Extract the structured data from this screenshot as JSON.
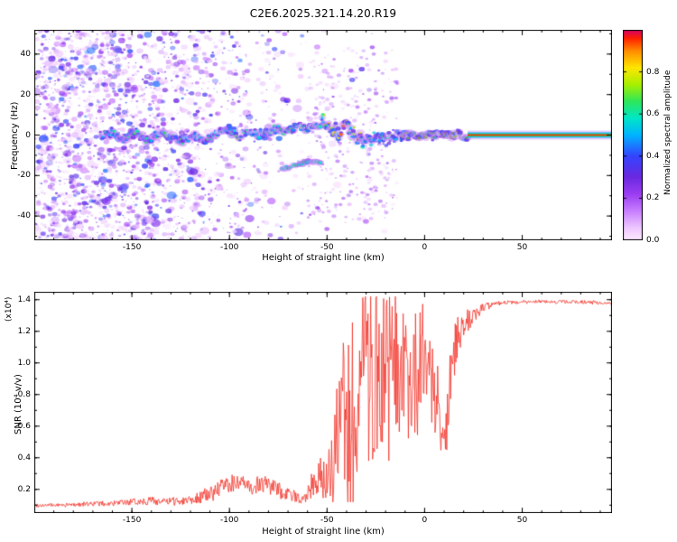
{
  "chart_data": [
    {
      "type": "heatmap",
      "title": "C2E6.2025.321.14.20.R19",
      "xlabel": "Height of straight line (km)",
      "ylabel": "Frequency (Hz)",
      "xlim": [
        -200,
        96
      ],
      "ylim": [
        -52,
        52
      ],
      "xticks": [
        -150,
        -100,
        -50,
        0,
        50
      ],
      "yticks": [
        -40,
        -20,
        0,
        20,
        40
      ],
      "grid": false,
      "colorbar": {
        "label": "Normalized spectral amplitude",
        "ticks": [
          0.0,
          0.2,
          0.4,
          0.6,
          0.8
        ],
        "range": [
          0,
          1
        ]
      },
      "colormap_stops": [
        [
          0.0,
          "#fdeaff"
        ],
        [
          0.06,
          "#eec6ff"
        ],
        [
          0.14,
          "#c77dff"
        ],
        [
          0.22,
          "#9b3df2"
        ],
        [
          0.3,
          "#6a29e0"
        ],
        [
          0.4,
          "#3444ff"
        ],
        [
          0.5,
          "#00b4ff"
        ],
        [
          0.58,
          "#00e6c8"
        ],
        [
          0.66,
          "#2ee65a"
        ],
        [
          0.74,
          "#a8f000"
        ],
        [
          0.82,
          "#ffe600"
        ],
        [
          0.9,
          "#ff8c00"
        ],
        [
          0.96,
          "#ff1e00"
        ],
        [
          1.0,
          "#d4006e"
        ]
      ],
      "noise": {
        "full_until_km": -150,
        "fade_until_km": -58,
        "sparse_until_km": -15,
        "freq_span": [
          -52,
          52
        ]
      },
      "main_track": [
        [
          -166,
          -1
        ],
        [
          -160,
          1
        ],
        [
          -154,
          -2
        ],
        [
          -148,
          2
        ],
        [
          -142,
          -3
        ],
        [
          -136,
          1
        ],
        [
          -130,
          -1
        ],
        [
          -124,
          -3
        ],
        [
          -118,
          0
        ],
        [
          -112,
          -2
        ],
        [
          -106,
          1
        ],
        [
          -100,
          3
        ],
        [
          -95,
          -1
        ],
        [
          -90,
          2
        ],
        [
          -85,
          0
        ],
        [
          -80,
          2
        ],
        [
          -76,
          4
        ],
        [
          -72,
          2
        ],
        [
          -68,
          3
        ],
        [
          -64,
          5
        ],
        [
          -60,
          3
        ],
        [
          -56,
          4
        ],
        [
          -52,
          6
        ],
        [
          -48,
          3
        ],
        [
          -44,
          1
        ],
        [
          -40,
          4
        ],
        [
          -36,
          0
        ],
        [
          -32,
          -2
        ],
        [
          -28,
          -2
        ],
        [
          -24,
          -1
        ],
        [
          -20,
          -2
        ],
        [
          -16,
          -1
        ],
        [
          -12,
          0
        ],
        [
          -8,
          0
        ],
        [
          -4,
          0
        ],
        [
          0,
          0
        ],
        [
          6,
          0
        ],
        [
          12,
          0
        ],
        [
          18,
          0
        ],
        [
          22,
          0
        ]
      ],
      "secondary_track": [
        [
          -73,
          -17
        ],
        [
          -68,
          -15
        ],
        [
          -63,
          -14
        ],
        [
          -58,
          -13
        ],
        [
          -53,
          -13
        ]
      ],
      "locked_line": {
        "start_km": 22,
        "freq": 0
      }
    },
    {
      "type": "line",
      "xlabel": "Height of straight line (km)",
      "ylabel": "SNR (10⁴ v/v)",
      "scale_note": "(x10⁴)",
      "xlim": [
        -200,
        96
      ],
      "ylim": [
        0.05,
        1.45
      ],
      "xticks": [
        -150,
        -100,
        -50,
        0,
        50
      ],
      "yticks": [
        0.2,
        0.4,
        0.6,
        0.8,
        1.0,
        1.2,
        1.4
      ],
      "line_color": "#f2342a",
      "anchors": [
        [
          -200,
          0.1,
          0.012
        ],
        [
          -185,
          0.1,
          0.012
        ],
        [
          -170,
          0.11,
          0.015
        ],
        [
          -160,
          0.11,
          0.018
        ],
        [
          -150,
          0.12,
          0.02
        ],
        [
          -140,
          0.13,
          0.03
        ],
        [
          -132,
          0.12,
          0.025
        ],
        [
          -124,
          0.13,
          0.03
        ],
        [
          -116,
          0.15,
          0.04
        ],
        [
          -110,
          0.17,
          0.05
        ],
        [
          -104,
          0.21,
          0.06
        ],
        [
          -99,
          0.24,
          0.06
        ],
        [
          -94,
          0.23,
          0.06
        ],
        [
          -89,
          0.21,
          0.05
        ],
        [
          -84,
          0.24,
          0.06
        ],
        [
          -79,
          0.22,
          0.06
        ],
        [
          -74,
          0.19,
          0.05
        ],
        [
          -69,
          0.16,
          0.04
        ],
        [
          -64,
          0.15,
          0.04
        ],
        [
          -60,
          0.18,
          0.06
        ],
        [
          -57,
          0.24,
          0.1
        ],
        [
          -54,
          0.28,
          0.14
        ],
        [
          -51,
          0.26,
          0.12
        ],
        [
          -49,
          0.35,
          0.22
        ],
        [
          -46,
          0.5,
          0.32
        ],
        [
          -43,
          0.55,
          0.38
        ],
        [
          -40,
          0.65,
          0.45
        ],
        [
          -37,
          0.72,
          0.5
        ],
        [
          -34,
          0.8,
          0.5
        ],
        [
          -31,
          0.85,
          0.5
        ],
        [
          -28,
          0.95,
          0.45
        ],
        [
          -25,
          0.9,
          0.5
        ],
        [
          -22,
          1.0,
          0.42
        ],
        [
          -19,
          0.95,
          0.45
        ],
        [
          -16,
          1.0,
          0.4
        ],
        [
          -13,
          0.85,
          0.4
        ],
        [
          -10,
          0.9,
          0.35
        ],
        [
          -7,
          0.9,
          0.32
        ],
        [
          -4,
          0.95,
          0.3
        ],
        [
          -1,
          1.0,
          0.28
        ],
        [
          2,
          1.05,
          0.24
        ],
        [
          5,
          0.95,
          0.3
        ],
        [
          7,
          0.7,
          0.25
        ],
        [
          9,
          0.55,
          0.12
        ],
        [
          11,
          0.6,
          0.18
        ],
        [
          13,
          0.8,
          0.25
        ],
        [
          15,
          1.05,
          0.2
        ],
        [
          17,
          1.15,
          0.15
        ],
        [
          19,
          1.2,
          0.12
        ],
        [
          22,
          1.27,
          0.08
        ],
        [
          26,
          1.32,
          0.05
        ],
        [
          30,
          1.35,
          0.03
        ],
        [
          35,
          1.37,
          0.018
        ],
        [
          40,
          1.38,
          0.014
        ],
        [
          50,
          1.385,
          0.012
        ],
        [
          60,
          1.39,
          0.01
        ],
        [
          70,
          1.385,
          0.012
        ],
        [
          80,
          1.385,
          0.012
        ],
        [
          90,
          1.38,
          0.012
        ],
        [
          96,
          1.375,
          0.012
        ]
      ]
    }
  ]
}
